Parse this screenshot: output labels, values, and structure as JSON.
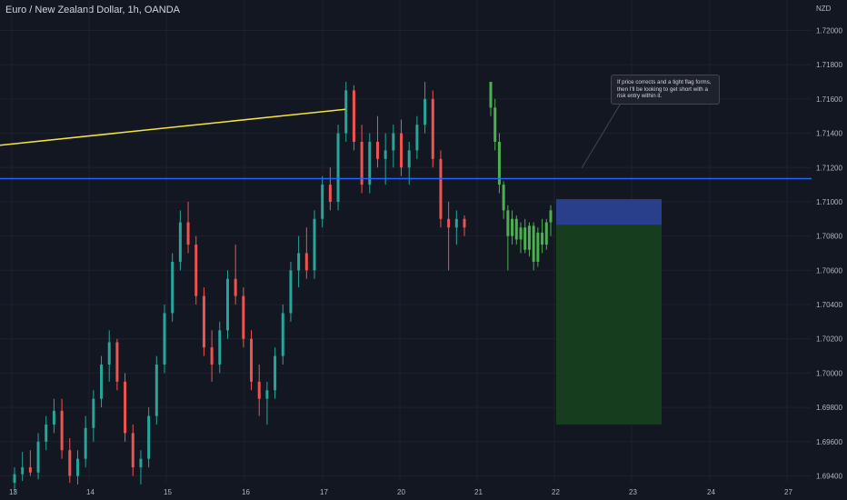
{
  "header": {
    "title": "Euro / New Zealand Dollar, 1h, OANDA"
  },
  "annotation": {
    "text": "If price corrects and a tight flag forms, then I'll be looking to get short with a risk entry within it."
  },
  "colors": {
    "background": "#131722",
    "up": "#26a69a",
    "down": "#ef5350",
    "projection": "#4caf50",
    "trendline": "#f5e53b",
    "hline": "#2962ff",
    "stop_zone": "#2a3f8c",
    "target_zone": "#163d1e",
    "grid": "#1e222d"
  },
  "chart_data": {
    "type": "candlestick",
    "symbol": "EURNZD",
    "timeframe": "1h",
    "broker": "OANDA",
    "currency": "NZD",
    "y_ticks": [
      "1.72000",
      "1.71800",
      "1.71600",
      "1.71400",
      "1.71200",
      "1.71000",
      "1.70800",
      "1.70600",
      "1.70400",
      "1.70200",
      "1.70000",
      "1.69800",
      "1.69600",
      "1.69400"
    ],
    "ylim": [
      1.6935,
      1.7227
    ],
    "x_ticks": [
      "13",
      "14",
      "15",
      "16",
      "17",
      "20",
      "21",
      "22",
      "23",
      "24",
      "27"
    ],
    "unit_label": "NZD",
    "candles": [
      [
        1.6936,
        1.6945,
        1.693,
        1.6941
      ],
      [
        1.6941,
        1.6954,
        1.6937,
        1.6945
      ],
      [
        1.6945,
        1.6955,
        1.694,
        1.6942
      ],
      [
        1.6942,
        1.6965,
        1.6938,
        1.696
      ],
      [
        1.696,
        1.6975,
        1.6955,
        1.697
      ],
      [
        1.697,
        1.6985,
        1.6965,
        1.6978
      ],
      [
        1.6978,
        1.6985,
        1.695,
        1.6955
      ],
      [
        1.6955,
        1.6962,
        1.6936,
        1.694
      ],
      [
        1.694,
        1.6955,
        1.6935,
        1.695
      ],
      [
        1.695,
        1.6975,
        1.6945,
        1.6968
      ],
      [
        1.6968,
        1.699,
        1.696,
        1.6985
      ],
      [
        1.6985,
        1.701,
        1.698,
        1.7005
      ],
      [
        1.7005,
        1.7025,
        1.6995,
        1.7018
      ],
      [
        1.7018,
        1.702,
        1.699,
        1.6995
      ],
      [
        1.6995,
        1.7,
        1.696,
        1.6965
      ],
      [
        1.6965,
        1.697,
        1.694,
        1.6945
      ],
      [
        1.6945,
        1.6955,
        1.6935,
        1.695
      ],
      [
        1.695,
        1.698,
        1.6945,
        1.6975
      ],
      [
        1.6975,
        1.701,
        1.697,
        1.7005
      ],
      [
        1.7005,
        1.704,
        1.7,
        1.7035
      ],
      [
        1.7035,
        1.707,
        1.703,
        1.7065
      ],
      [
        1.7065,
        1.7095,
        1.706,
        1.7088
      ],
      [
        1.7088,
        1.71,
        1.707,
        1.7075
      ],
      [
        1.7075,
        1.708,
        1.704,
        1.7045
      ],
      [
        1.7045,
        1.705,
        1.701,
        1.7015
      ],
      [
        1.7015,
        1.7025,
        1.6995,
        1.7005
      ],
      [
        1.7005,
        1.703,
        1.7,
        1.7025
      ],
      [
        1.7025,
        1.706,
        1.702,
        1.7055
      ],
      [
        1.7055,
        1.7075,
        1.704,
        1.7045
      ],
      [
        1.7045,
        1.705,
        1.7015,
        1.702
      ],
      [
        1.702,
        1.7025,
        1.699,
        1.6995
      ],
      [
        1.6995,
        1.7005,
        1.6975,
        1.6985
      ],
      [
        1.6985,
        1.6995,
        1.697,
        1.699
      ],
      [
        1.699,
        1.7015,
        1.6985,
        1.701
      ],
      [
        1.701,
        1.704,
        1.7005,
        1.7035
      ],
      [
        1.7035,
        1.7065,
        1.703,
        1.706
      ],
      [
        1.706,
        1.708,
        1.705,
        1.707
      ],
      [
        1.707,
        1.7085,
        1.7055,
        1.706
      ],
      [
        1.706,
        1.7095,
        1.7055,
        1.709
      ],
      [
        1.709,
        1.7115,
        1.7085,
        1.711
      ],
      [
        1.711,
        1.712,
        1.7095,
        1.71
      ],
      [
        1.71,
        1.7145,
        1.7095,
        1.714
      ],
      [
        1.714,
        1.717,
        1.7135,
        1.7165
      ],
      [
        1.7165,
        1.7168,
        1.713,
        1.7135
      ],
      [
        1.7135,
        1.7145,
        1.7105,
        1.711
      ],
      [
        1.711,
        1.714,
        1.7105,
        1.7135
      ],
      [
        1.7135,
        1.715,
        1.712,
        1.7125
      ],
      [
        1.7125,
        1.714,
        1.711,
        1.713
      ],
      [
        1.713,
        1.7145,
        1.712,
        1.714
      ],
      [
        1.714,
        1.7148,
        1.7115,
        1.712
      ],
      [
        1.712,
        1.7135,
        1.711,
        1.713
      ],
      [
        1.713,
        1.715,
        1.7125,
        1.7145
      ],
      [
        1.7145,
        1.717,
        1.714,
        1.716
      ],
      [
        1.716,
        1.7165,
        1.712,
        1.7125
      ],
      [
        1.7125,
        1.713,
        1.7085,
        1.709
      ],
      [
        1.709,
        1.71,
        1.706,
        1.7085
      ],
      [
        1.7085,
        1.7095,
        1.7075,
        1.709
      ],
      [
        1.709,
        1.7092,
        1.708,
        1.7085
      ]
    ],
    "projection": [
      [
        1.717,
        1.717,
        1.715,
        1.7155
      ],
      [
        1.7155,
        1.716,
        1.713,
        1.7135
      ],
      [
        1.7135,
        1.714,
        1.7105,
        1.711
      ],
      [
        1.711,
        1.7112,
        1.709,
        1.7095
      ],
      [
        1.7095,
        1.7098,
        1.706,
        1.708
      ],
      [
        1.708,
        1.7095,
        1.7075,
        1.709
      ],
      [
        1.709,
        1.7092,
        1.7075,
        1.7078
      ],
      [
        1.7078,
        1.7088,
        1.707,
        1.7085
      ],
      [
        1.7085,
        1.709,
        1.707,
        1.7072
      ],
      [
        1.7072,
        1.7088,
        1.7068,
        1.7086
      ],
      [
        1.7086,
        1.7088,
        1.706,
        1.7065
      ],
      [
        1.7065,
        1.7085,
        1.7062,
        1.7082
      ],
      [
        1.7082,
        1.709,
        1.707,
        1.7075
      ],
      [
        1.7075,
        1.709,
        1.7072,
        1.7088
      ],
      [
        1.7088,
        1.7098,
        1.708,
        1.7095
      ]
    ],
    "trendline": {
      "from": 1.7133,
      "to": 1.7154
    },
    "resistance_level": 1.71135,
    "short_position": {
      "entry": 1.70865,
      "stop": 1.71015,
      "target": 1.697
    }
  }
}
